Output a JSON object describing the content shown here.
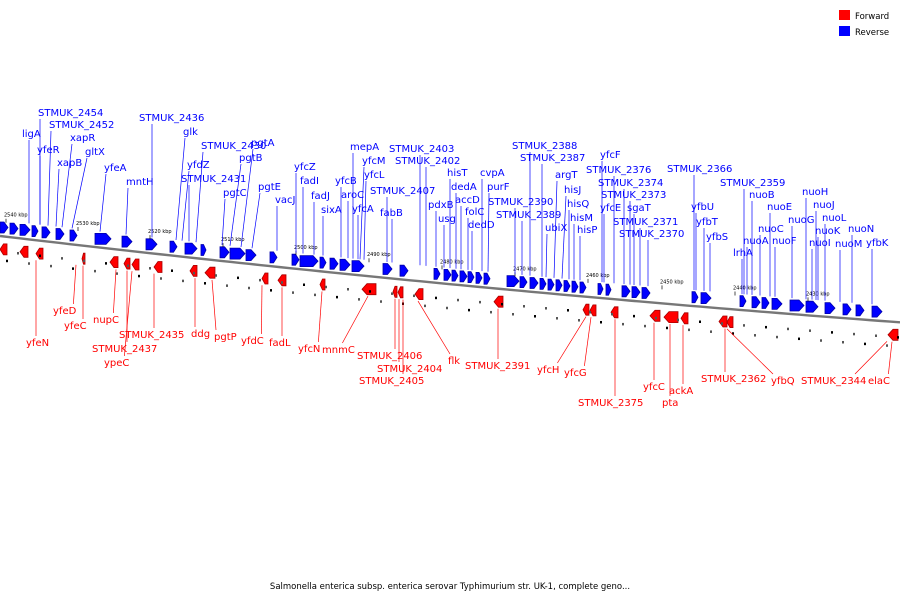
{
  "legend": {
    "forward": "Forward",
    "reverse": "Reverse"
  },
  "colors": {
    "forward": "#ff0000",
    "reverse": "#0000ff",
    "forward_dark": "#a80000",
    "reverse_dark": "#0000a8",
    "backbone": "#777777"
  },
  "caption": "Salmonella enterica subsp. enterica serovar Typhimurium str. UK-1, complete geno...",
  "ticks": [
    "2540 kbp",
    "2530 kbp",
    "2520 kbp",
    "2510 kbp",
    "2500 kbp",
    "2490 kbp",
    "2480 kbp",
    "2470 kbp",
    "2460 kbp",
    "2450 kbp",
    "2440 kbp",
    "2430 kbp"
  ],
  "reverse_labels": [
    "STMUK_2454",
    "STMUK_2452",
    "ligA",
    "xapR",
    "yfeR",
    "xapB",
    "gltX",
    "yfeA",
    "mntH",
    "STMUK_2436",
    "glk",
    "STMUK_2430",
    "yfdZ",
    "pgtB",
    "STMUK_2431",
    "pgtA",
    "pgtC",
    "pgtE",
    "vacJ",
    "yfcZ",
    "fadI",
    "fadJ",
    "sixA",
    "mepA",
    "yfcM",
    "yfcL",
    "yfcB",
    "aroC",
    "yfcA",
    "STMUK_2407",
    "fabB",
    "STMUK_2403",
    "STMUK_2402",
    "hisT",
    "dedA",
    "pdxB",
    "accD",
    "usg",
    "folC",
    "dedD",
    "cvpA",
    "purF",
    "STMUK_2390",
    "STMUK_2389",
    "STMUK_2388",
    "STMUK_2387",
    "argT",
    "ubiX",
    "hisJ",
    "hisQ",
    "hisM",
    "hisP",
    "yfcF",
    "STMUK_2376",
    "STMUK_2374",
    "STMUK_2373",
    "yfcE",
    "sgaT",
    "STMUK_2371",
    "STMUK_2370",
    "STMUK_2366",
    "yfbU",
    "yfbT",
    "yfbS",
    "STMUK_2359",
    "nuoB",
    "lrhA",
    "nuoA",
    "nuoE",
    "nuoC",
    "nuoF",
    "nuoG",
    "nuoH",
    "nuoJ",
    "nuoK",
    "nuoL",
    "nuoI",
    "nuoM",
    "nuoN",
    "yfbK"
  ],
  "forward_labels": [
    "yfeN",
    "yfeD",
    "yfeC",
    "nupC",
    "STMUK_2437",
    "ypeC",
    "STMUK_2435",
    "ddg",
    "pgtP",
    "yfdC",
    "fadL",
    "yfcN",
    "mnmC",
    "STMUK_2406",
    "STMUK_2404",
    "STMUK_2405",
    "flk",
    "STMUK_2391",
    "yfcH",
    "yfcG",
    "STMUK_2375",
    "yfcC",
    "pta",
    "ackA",
    "STMUK_2362",
    "yfbQ",
    "STMUK_2344",
    "elaC"
  ]
}
